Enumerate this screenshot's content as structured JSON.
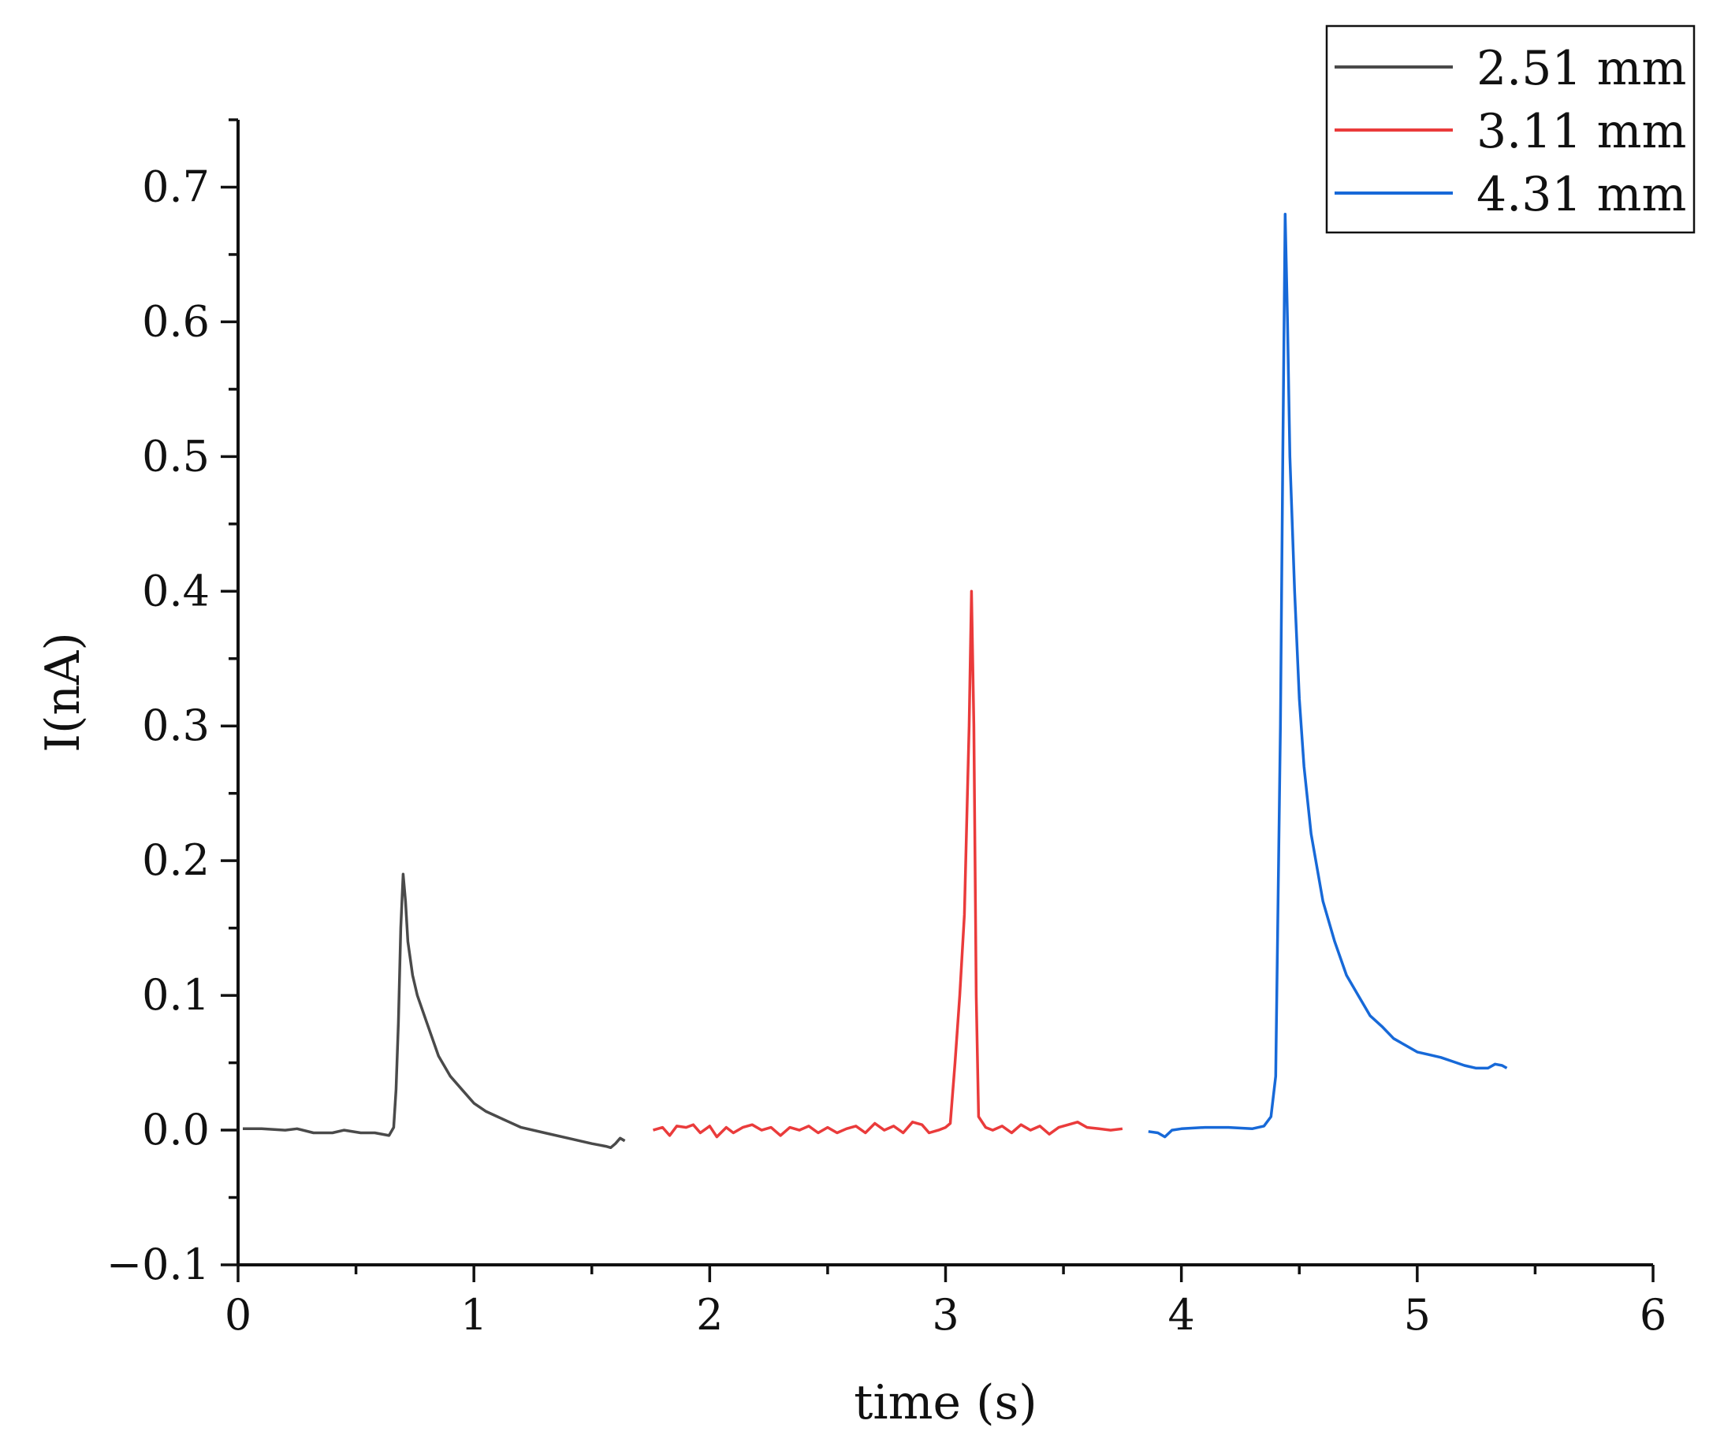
{
  "chart_data": {
    "type": "line",
    "xlabel": "time (s)",
    "ylabel": "I(nA)",
    "xlim": [
      0,
      6
    ],
    "ylim": [
      -0.1,
      0.75
    ],
    "x_ticks": [
      "0",
      "1",
      "2",
      "3",
      "4",
      "5",
      "6"
    ],
    "y_ticks": [
      "−0.1",
      "0.0",
      "0.1",
      "0.2",
      "0.3",
      "0.4",
      "0.5",
      "0.6",
      "0.7"
    ],
    "grid": false,
    "legend_position": "top-right",
    "series": [
      {
        "name": "2.51 mm",
        "color": "#4a4a4a",
        "points": [
          [
            0.02,
            0.001
          ],
          [
            0.1,
            0.001
          ],
          [
            0.2,
            0.0
          ],
          [
            0.25,
            0.001
          ],
          [
            0.32,
            -0.002
          ],
          [
            0.4,
            -0.002
          ],
          [
            0.45,
            0.0
          ],
          [
            0.52,
            -0.002
          ],
          [
            0.58,
            -0.002
          ],
          [
            0.64,
            -0.004
          ],
          [
            0.66,
            0.002
          ],
          [
            0.67,
            0.03
          ],
          [
            0.68,
            0.08
          ],
          [
            0.69,
            0.15
          ],
          [
            0.7,
            0.19
          ],
          [
            0.71,
            0.17
          ],
          [
            0.72,
            0.14
          ],
          [
            0.74,
            0.115
          ],
          [
            0.76,
            0.1
          ],
          [
            0.8,
            0.08
          ],
          [
            0.85,
            0.055
          ],
          [
            0.9,
            0.04
          ],
          [
            0.95,
            0.03
          ],
          [
            1.0,
            0.02
          ],
          [
            1.05,
            0.014
          ],
          [
            1.1,
            0.01
          ],
          [
            1.15,
            0.006
          ],
          [
            1.2,
            0.002
          ],
          [
            1.3,
            -0.002
          ],
          [
            1.4,
            -0.006
          ],
          [
            1.5,
            -0.01
          ],
          [
            1.56,
            -0.012
          ],
          [
            1.58,
            -0.013
          ],
          [
            1.6,
            -0.01
          ],
          [
            1.62,
            -0.006
          ],
          [
            1.64,
            -0.008
          ]
        ]
      },
      {
        "name": "3.11 mm",
        "color": "#ea3b3b",
        "points": [
          [
            1.76,
            0.0
          ],
          [
            1.8,
            0.002
          ],
          [
            1.83,
            -0.004
          ],
          [
            1.86,
            0.003
          ],
          [
            1.9,
            0.002
          ],
          [
            1.93,
            0.004
          ],
          [
            1.96,
            -0.002
          ],
          [
            2.0,
            0.003
          ],
          [
            2.03,
            -0.005
          ],
          [
            2.07,
            0.002
          ],
          [
            2.1,
            -0.002
          ],
          [
            2.14,
            0.002
          ],
          [
            2.18,
            0.004
          ],
          [
            2.22,
            0.0
          ],
          [
            2.26,
            0.002
          ],
          [
            2.3,
            -0.004
          ],
          [
            2.34,
            0.002
          ],
          [
            2.38,
            0.0
          ],
          [
            2.42,
            0.003
          ],
          [
            2.46,
            -0.002
          ],
          [
            2.5,
            0.002
          ],
          [
            2.54,
            -0.002
          ],
          [
            2.58,
            0.001
          ],
          [
            2.62,
            0.003
          ],
          [
            2.66,
            -0.002
          ],
          [
            2.7,
            0.005
          ],
          [
            2.74,
            0.0
          ],
          [
            2.78,
            0.003
          ],
          [
            2.82,
            -0.002
          ],
          [
            2.86,
            0.006
          ],
          [
            2.9,
            0.004
          ],
          [
            2.93,
            -0.002
          ],
          [
            2.97,
            0.0
          ],
          [
            3.0,
            0.002
          ],
          [
            3.02,
            0.005
          ],
          [
            3.04,
            0.05
          ],
          [
            3.06,
            0.1
          ],
          [
            3.08,
            0.16
          ],
          [
            3.1,
            0.3
          ],
          [
            3.11,
            0.4
          ],
          [
            3.12,
            0.3
          ],
          [
            3.13,
            0.1
          ],
          [
            3.14,
            0.01
          ],
          [
            3.17,
            0.002
          ],
          [
            3.2,
            0.0
          ],
          [
            3.24,
            0.003
          ],
          [
            3.28,
            -0.002
          ],
          [
            3.32,
            0.004
          ],
          [
            3.36,
            0.0
          ],
          [
            3.4,
            0.003
          ],
          [
            3.44,
            -0.003
          ],
          [
            3.48,
            0.002
          ],
          [
            3.52,
            0.004
          ],
          [
            3.56,
            0.006
          ],
          [
            3.6,
            0.002
          ],
          [
            3.65,
            0.001
          ],
          [
            3.7,
            0.0
          ],
          [
            3.75,
            0.001
          ]
        ]
      },
      {
        "name": "4.31 mm",
        "color": "#1769d8",
        "points": [
          [
            3.86,
            -0.001
          ],
          [
            3.9,
            -0.002
          ],
          [
            3.93,
            -0.005
          ],
          [
            3.96,
            0.0
          ],
          [
            4.0,
            0.001
          ],
          [
            4.1,
            0.002
          ],
          [
            4.2,
            0.002
          ],
          [
            4.3,
            0.001
          ],
          [
            4.35,
            0.003
          ],
          [
            4.38,
            0.01
          ],
          [
            4.4,
            0.04
          ],
          [
            4.42,
            0.3
          ],
          [
            4.43,
            0.5
          ],
          [
            4.44,
            0.68
          ],
          [
            4.45,
            0.6
          ],
          [
            4.46,
            0.5
          ],
          [
            4.48,
            0.4
          ],
          [
            4.5,
            0.32
          ],
          [
            4.52,
            0.27
          ],
          [
            4.55,
            0.22
          ],
          [
            4.6,
            0.17
          ],
          [
            4.65,
            0.14
          ],
          [
            4.7,
            0.115
          ],
          [
            4.75,
            0.1
          ],
          [
            4.8,
            0.085
          ],
          [
            4.85,
            0.077
          ],
          [
            4.9,
            0.068
          ],
          [
            4.95,
            0.063
          ],
          [
            5.0,
            0.058
          ],
          [
            5.05,
            0.056
          ],
          [
            5.1,
            0.054
          ],
          [
            5.15,
            0.051
          ],
          [
            5.2,
            0.048
          ],
          [
            5.25,
            0.046
          ],
          [
            5.3,
            0.046
          ],
          [
            5.33,
            0.049
          ],
          [
            5.36,
            0.048
          ],
          [
            5.38,
            0.046
          ]
        ]
      }
    ]
  }
}
